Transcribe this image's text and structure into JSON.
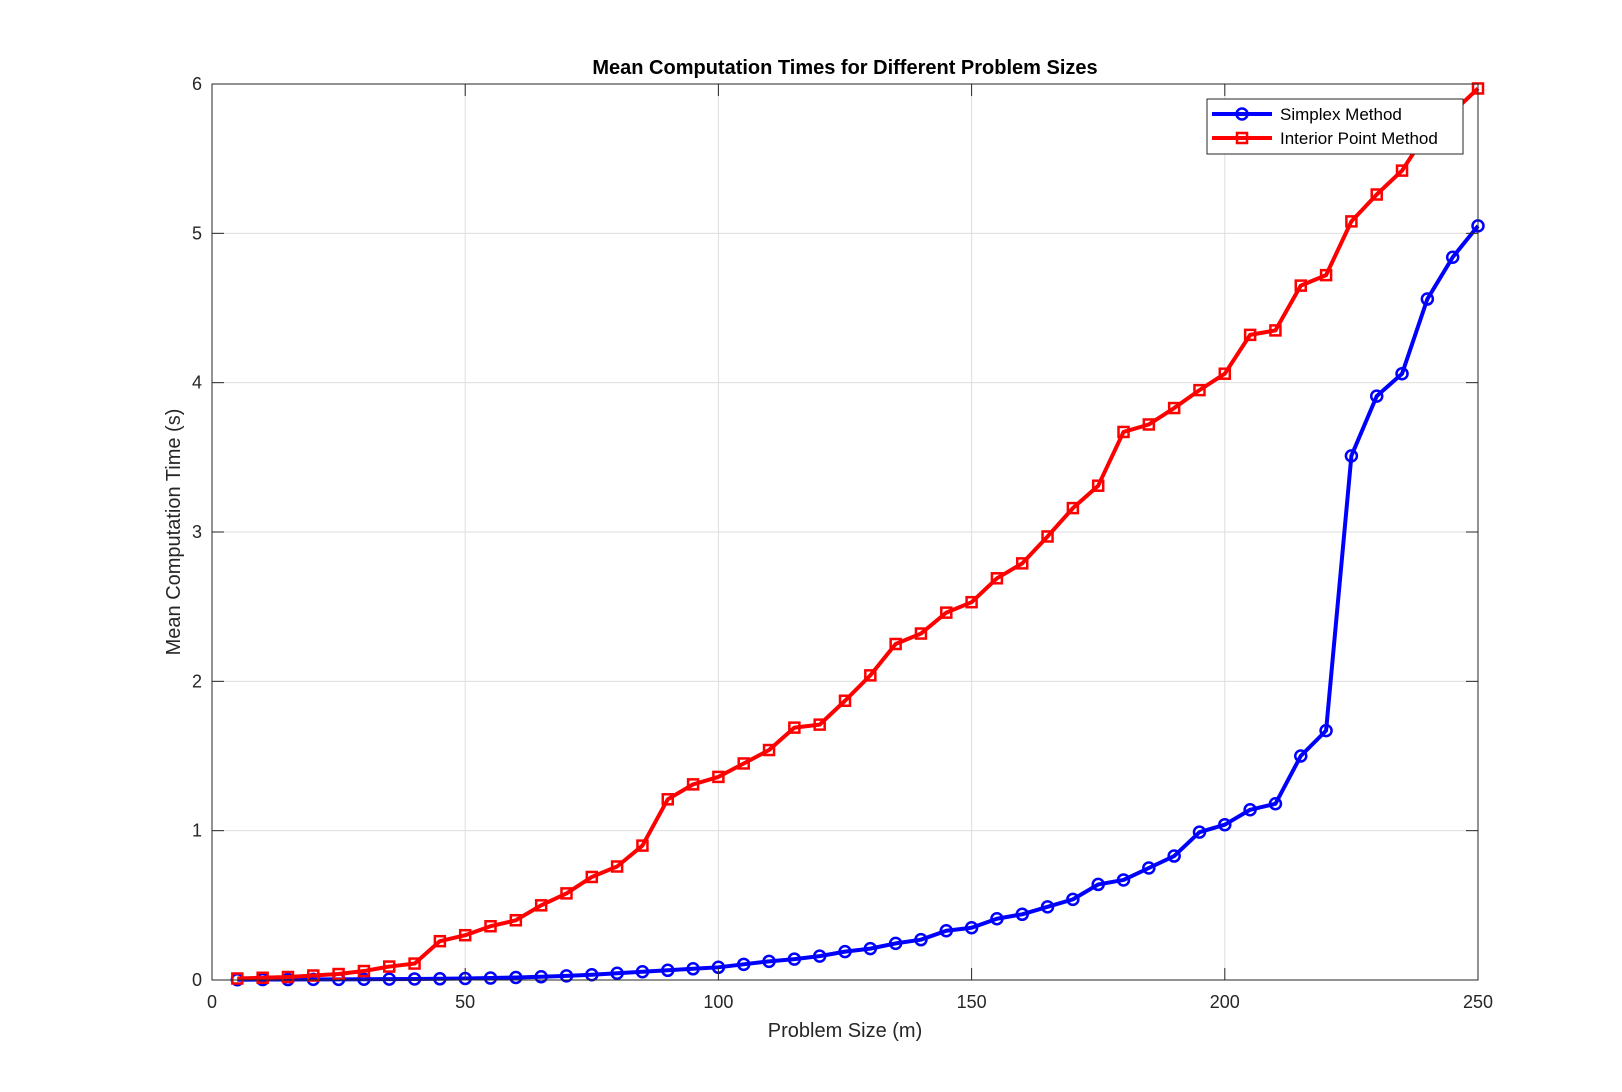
{
  "chart_data": {
    "type": "line",
    "title": "Mean Computation Times for Different Problem Sizes",
    "xlabel": "Problem Size (m)",
    "ylabel": "Mean Computation Time (s)",
    "xlim": [
      0,
      250
    ],
    "ylim": [
      0,
      6
    ],
    "xticks": [
      "0",
      "50",
      "100",
      "150",
      "200",
      "250"
    ],
    "yticks": [
      "0",
      "1",
      "2",
      "3",
      "4",
      "5",
      "6"
    ],
    "grid": true,
    "legend_position": "top-right",
    "x": [
      5,
      10,
      15,
      20,
      25,
      30,
      35,
      40,
      45,
      50,
      55,
      60,
      65,
      70,
      75,
      80,
      85,
      90,
      95,
      100,
      105,
      110,
      115,
      120,
      125,
      130,
      135,
      140,
      145,
      150,
      155,
      160,
      165,
      170,
      175,
      180,
      185,
      190,
      195,
      200,
      205,
      210,
      215,
      220,
      225,
      230,
      235,
      240,
      245,
      250
    ],
    "series": [
      {
        "name": "Simplex Method",
        "color": "#0000ff",
        "marker": "circle",
        "values": [
          0.002,
          0.003,
          0.003,
          0.004,
          0.004,
          0.005,
          0.006,
          0.007,
          0.008,
          0.01,
          0.013,
          0.017,
          0.022,
          0.028,
          0.035,
          0.045,
          0.055,
          0.065,
          0.075,
          0.085,
          0.105,
          0.125,
          0.14,
          0.16,
          0.19,
          0.21,
          0.245,
          0.27,
          0.33,
          0.35,
          0.41,
          0.44,
          0.49,
          0.54,
          0.64,
          0.67,
          0.75,
          0.83,
          0.99,
          1.04,
          1.14,
          1.18,
          1.5,
          1.67,
          3.51,
          3.91,
          4.06,
          4.56,
          4.84,
          5.05
        ]
      },
      {
        "name": "Interior Point Method",
        "color": "#ff0000",
        "marker": "square",
        "values": [
          0.01,
          0.015,
          0.02,
          0.03,
          0.04,
          0.06,
          0.09,
          0.11,
          0.26,
          0.3,
          0.36,
          0.4,
          0.5,
          0.58,
          0.69,
          0.76,
          0.9,
          1.21,
          1.31,
          1.36,
          1.45,
          1.54,
          1.69,
          1.71,
          1.87,
          2.04,
          2.25,
          2.32,
          2.46,
          2.53,
          2.69,
          2.79,
          2.97,
          3.16,
          3.31,
          3.67,
          3.72,
          3.83,
          3.95,
          4.06,
          4.32,
          4.35,
          4.65,
          4.72,
          5.08,
          5.26,
          5.42,
          5.68,
          5.81,
          5.97
        ]
      }
    ]
  }
}
